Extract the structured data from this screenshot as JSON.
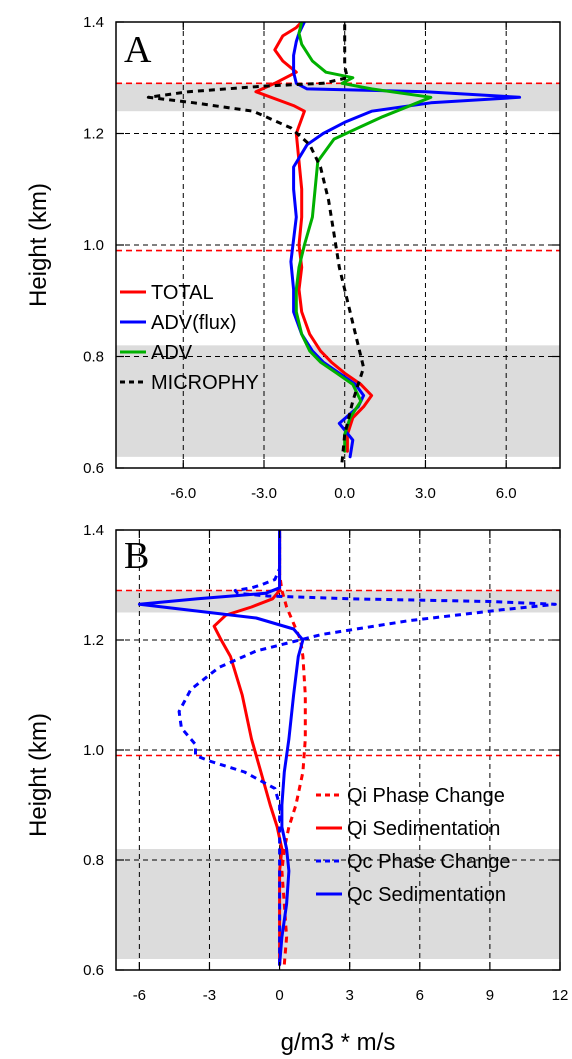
{
  "xlabel": "g/m3 * m/s",
  "ylabel": "Height (km)",
  "chart_data": [
    {
      "panel": "A",
      "type": "line",
      "xlim": [
        -8.5,
        8.0
      ],
      "ylim": [
        0.6,
        1.4
      ],
      "xticks": [
        -6.0,
        -3.0,
        0.0,
        3.0,
        6.0
      ],
      "xtick_labels": [
        "-6.0",
        "-3.0",
        "0.0",
        "3.0",
        "6.0"
      ],
      "yticks": [
        0.6,
        0.8,
        1.0,
        1.2,
        1.4
      ],
      "ytick_labels": [
        "0.6",
        "0.8",
        "1.0",
        "1.2",
        "1.4"
      ],
      "shaded_bands": [
        [
          0.62,
          0.82
        ],
        [
          1.24,
          1.29
        ]
      ],
      "red_hlines": [
        0.99,
        1.29
      ],
      "grid": true,
      "legend_position": "left-middle",
      "series": [
        {
          "name": "TOTAL",
          "color": "#ff0000",
          "dash": "solid",
          "points": [
            [
              0.1,
              0.63
            ],
            [
              0.1,
              0.66
            ],
            [
              0.3,
              0.69
            ],
            [
              0.7,
              0.71
            ],
            [
              1.0,
              0.73
            ],
            [
              0.6,
              0.75
            ],
            [
              0.0,
              0.77
            ],
            [
              -0.5,
              0.79
            ],
            [
              -0.9,
              0.81
            ],
            [
              -1.3,
              0.84
            ],
            [
              -1.6,
              0.88
            ],
            [
              -1.7,
              0.92
            ],
            [
              -1.6,
              0.96
            ],
            [
              -1.7,
              1.0
            ],
            [
              -1.6,
              1.05
            ],
            [
              -1.6,
              1.1
            ],
            [
              -1.7,
              1.15
            ],
            [
              -1.8,
              1.2
            ],
            [
              -1.5,
              1.24
            ],
            [
              -1.9,
              1.25
            ],
            [
              -3.3,
              1.275
            ],
            [
              -2.6,
              1.29
            ],
            [
              -1.8,
              1.31
            ],
            [
              -2.3,
              1.33
            ],
            [
              -2.6,
              1.35
            ],
            [
              -2.3,
              1.375
            ],
            [
              -1.8,
              1.39
            ],
            [
              -1.6,
              1.4
            ]
          ]
        },
        {
          "name": "ADV(flux)",
          "color": "#0000ff",
          "dash": "solid",
          "points": [
            [
              0.2,
              0.62
            ],
            [
              0.3,
              0.65
            ],
            [
              -0.2,
              0.68
            ],
            [
              0.5,
              0.71
            ],
            [
              0.7,
              0.73
            ],
            [
              0.4,
              0.75
            ],
            [
              -0.2,
              0.77
            ],
            [
              -0.8,
              0.79
            ],
            [
              -1.2,
              0.81
            ],
            [
              -1.6,
              0.84
            ],
            [
              -1.9,
              0.88
            ],
            [
              -1.9,
              0.92
            ],
            [
              -2.0,
              0.97
            ],
            [
              -1.9,
              1.01
            ],
            [
              -1.8,
              1.05
            ],
            [
              -1.9,
              1.1
            ],
            [
              -1.9,
              1.14
            ],
            [
              -1.4,
              1.18
            ],
            [
              -0.8,
              1.2
            ],
            [
              0.0,
              1.22
            ],
            [
              1.0,
              1.24
            ],
            [
              3.2,
              1.255
            ],
            [
              6.5,
              1.265
            ],
            [
              3.0,
              1.275
            ],
            [
              -1.4,
              1.28
            ],
            [
              -1.8,
              1.29
            ],
            [
              -1.9,
              1.31
            ],
            [
              -1.9,
              1.34
            ],
            [
              -1.8,
              1.365
            ],
            [
              -1.7,
              1.38
            ],
            [
              -1.5,
              1.4
            ]
          ]
        },
        {
          "name": "ADV",
          "color": "#00b000",
          "dash": "solid",
          "points": [
            [
              0.0,
              0.63
            ],
            [
              0.0,
              0.66
            ],
            [
              0.2,
              0.69
            ],
            [
              0.6,
              0.72
            ],
            [
              0.3,
              0.75
            ],
            [
              -0.3,
              0.77
            ],
            [
              -0.9,
              0.79
            ],
            [
              -1.3,
              0.81
            ],
            [
              -1.6,
              0.84
            ],
            [
              -1.8,
              0.88
            ],
            [
              -1.8,
              0.92
            ],
            [
              -1.7,
              0.96
            ],
            [
              -1.5,
              1.0
            ],
            [
              -1.2,
              1.05
            ],
            [
              -1.1,
              1.1
            ],
            [
              -1.0,
              1.15
            ],
            [
              -0.4,
              1.19
            ],
            [
              0.5,
              1.21
            ],
            [
              1.4,
              1.23
            ],
            [
              3.2,
              1.265
            ],
            [
              1.0,
              1.28
            ],
            [
              -0.1,
              1.29
            ],
            [
              0.3,
              1.3
            ],
            [
              -0.7,
              1.31
            ],
            [
              -1.2,
              1.33
            ],
            [
              -1.6,
              1.36
            ],
            [
              -1.7,
              1.38
            ],
            [
              -1.6,
              1.4
            ]
          ]
        },
        {
          "name": "MICROPHY",
          "color": "#000000",
          "dash": "dashed",
          "points": [
            [
              -0.1,
              0.61
            ],
            [
              0.0,
              0.66
            ],
            [
              0.3,
              0.72
            ],
            [
              0.7,
              0.78
            ],
            [
              0.4,
              0.84
            ],
            [
              0.1,
              0.9
            ],
            [
              -0.2,
              0.96
            ],
            [
              -0.4,
              1.02
            ],
            [
              -0.6,
              1.08
            ],
            [
              -0.9,
              1.14
            ],
            [
              -1.3,
              1.18
            ],
            [
              -2.0,
              1.21
            ],
            [
              -3.4,
              1.24
            ],
            [
              -5.6,
              1.255
            ],
            [
              -7.3,
              1.265
            ],
            [
              -5.8,
              1.275
            ],
            [
              -3.0,
              1.285
            ],
            [
              -0.8,
              1.29
            ],
            [
              0.1,
              1.3
            ],
            [
              0.0,
              1.32
            ],
            [
              0.0,
              1.36
            ],
            [
              0.0,
              1.4
            ]
          ]
        }
      ]
    },
    {
      "panel": "B",
      "type": "line",
      "xlim": [
        -7.0,
        12.0
      ],
      "ylim": [
        0.6,
        1.4
      ],
      "xticks": [
        -6,
        -3,
        0,
        3,
        6,
        9,
        12
      ],
      "xtick_labels": [
        "-6",
        "-3",
        "0",
        "3",
        "6",
        "9",
        "12"
      ],
      "yticks": [
        0.6,
        0.8,
        1.0,
        1.2,
        1.4
      ],
      "ytick_labels": [
        "0.6",
        "0.8",
        "1.0",
        "1.2",
        "1.4"
      ],
      "shaded_bands": [
        [
          0.62,
          0.82
        ],
        [
          1.25,
          1.29
        ]
      ],
      "red_hlines": [
        0.99,
        1.29
      ],
      "grid": true,
      "legend_position": "bottom-right",
      "series": [
        {
          "name": "Qi Phase Change",
          "color": "#ff0000",
          "dash": "dashed",
          "points": [
            [
              0.2,
              0.61
            ],
            [
              0.3,
              0.66
            ],
            [
              0.2,
              0.72
            ],
            [
              0.1,
              0.78
            ],
            [
              0.2,
              0.82
            ],
            [
              0.4,
              0.86
            ],
            [
              0.7,
              0.9
            ],
            [
              1.0,
              0.96
            ],
            [
              1.1,
              1.02
            ],
            [
              1.1,
              1.1
            ],
            [
              1.0,
              1.17
            ],
            [
              0.9,
              1.2
            ],
            [
              0.6,
              1.23
            ],
            [
              0.3,
              1.26
            ],
            [
              0.1,
              1.29
            ],
            [
              0.0,
              1.32
            ],
            [
              0.0,
              1.4
            ]
          ]
        },
        {
          "name": "Qi Sedimentation",
          "color": "#ff0000",
          "dash": "solid",
          "points": [
            [
              0.0,
              0.61
            ],
            [
              0.0,
              0.66
            ],
            [
              0.0,
              0.72
            ],
            [
              0.0,
              0.78
            ],
            [
              0.1,
              0.82
            ],
            [
              -0.1,
              0.86
            ],
            [
              -0.4,
              0.9
            ],
            [
              -0.8,
              0.96
            ],
            [
              -1.2,
              1.02
            ],
            [
              -1.6,
              1.1
            ],
            [
              -2.1,
              1.17
            ],
            [
              -2.5,
              1.2
            ],
            [
              -2.8,
              1.225
            ],
            [
              -2.3,
              1.245
            ],
            [
              -1.2,
              1.26
            ],
            [
              -0.3,
              1.275
            ],
            [
              0.0,
              1.29
            ],
            [
              0.0,
              1.33
            ],
            [
              0.0,
              1.4
            ]
          ]
        },
        {
          "name": "Qc Phase Change",
          "color": "#0000ff",
          "dash": "dashed",
          "points": [
            [
              0.0,
              0.61
            ],
            [
              0.0,
              0.7
            ],
            [
              0.0,
              0.8
            ],
            [
              0.0,
              0.9
            ],
            [
              -0.2,
              0.93
            ],
            [
              -1.5,
              0.96
            ],
            [
              -3.0,
              0.98
            ],
            [
              -3.6,
              0.99
            ],
            [
              -3.6,
              1.01
            ],
            [
              -4.2,
              1.04
            ],
            [
              -4.3,
              1.07
            ],
            [
              -3.8,
              1.11
            ],
            [
              -2.6,
              1.15
            ],
            [
              -1.0,
              1.18
            ],
            [
              1.8,
              1.21
            ],
            [
              5.5,
              1.235
            ],
            [
              9.5,
              1.255
            ],
            [
              11.8,
              1.265
            ],
            [
              9.0,
              1.27
            ],
            [
              3.0,
              1.275
            ],
            [
              -0.5,
              1.28
            ],
            [
              -1.8,
              1.285
            ],
            [
              -1.9,
              1.29
            ],
            [
              -1.2,
              1.295
            ],
            [
              -0.8,
              1.3
            ],
            [
              -0.2,
              1.31
            ],
            [
              0.0,
              1.33
            ],
            [
              0.0,
              1.4
            ]
          ]
        },
        {
          "name": "Qc Sedimentation",
          "color": "#0000ff",
          "dash": "solid",
          "points": [
            [
              0.0,
              0.61
            ],
            [
              0.1,
              0.66
            ],
            [
              0.3,
              0.72
            ],
            [
              0.4,
              0.78
            ],
            [
              0.3,
              0.82
            ],
            [
              0.1,
              0.86
            ],
            [
              0.1,
              0.9
            ],
            [
              0.2,
              0.96
            ],
            [
              0.4,
              1.02
            ],
            [
              0.6,
              1.1
            ],
            [
              0.8,
              1.17
            ],
            [
              1.0,
              1.2
            ],
            [
              0.6,
              1.22
            ],
            [
              -1.0,
              1.24
            ],
            [
              -4.0,
              1.255
            ],
            [
              -6.0,
              1.265
            ],
            [
              -3.5,
              1.275
            ],
            [
              -0.6,
              1.285
            ],
            [
              0.0,
              1.295
            ],
            [
              0.0,
              1.33
            ],
            [
              0.0,
              1.4
            ]
          ]
        }
      ]
    }
  ]
}
